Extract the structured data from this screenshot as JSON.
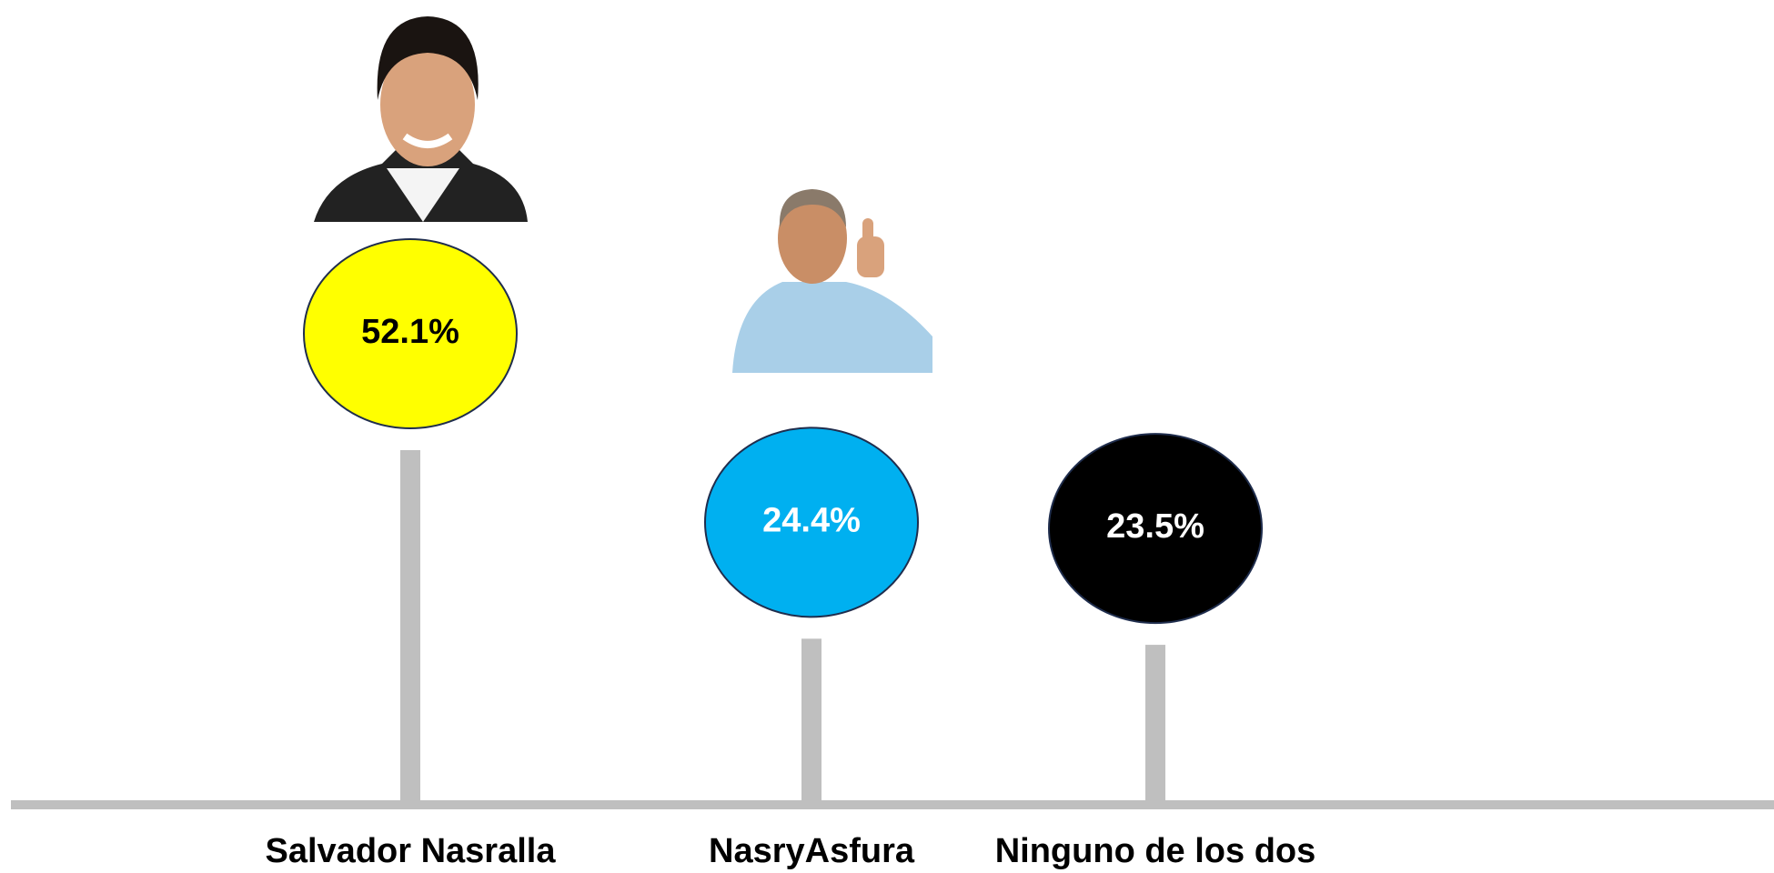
{
  "chart_data": {
    "type": "lollipop",
    "categories": [
      "Salvador Nasralla",
      "NasryAsfura",
      "Ninguno de los dos"
    ],
    "values": [
      52.1,
      24.4,
      23.5
    ],
    "value_labels": [
      "52.1%",
      "24.4%",
      "23.5%"
    ],
    "colors": [
      "#ffff00",
      "#00b0f0",
      "#000000"
    ]
  }
}
